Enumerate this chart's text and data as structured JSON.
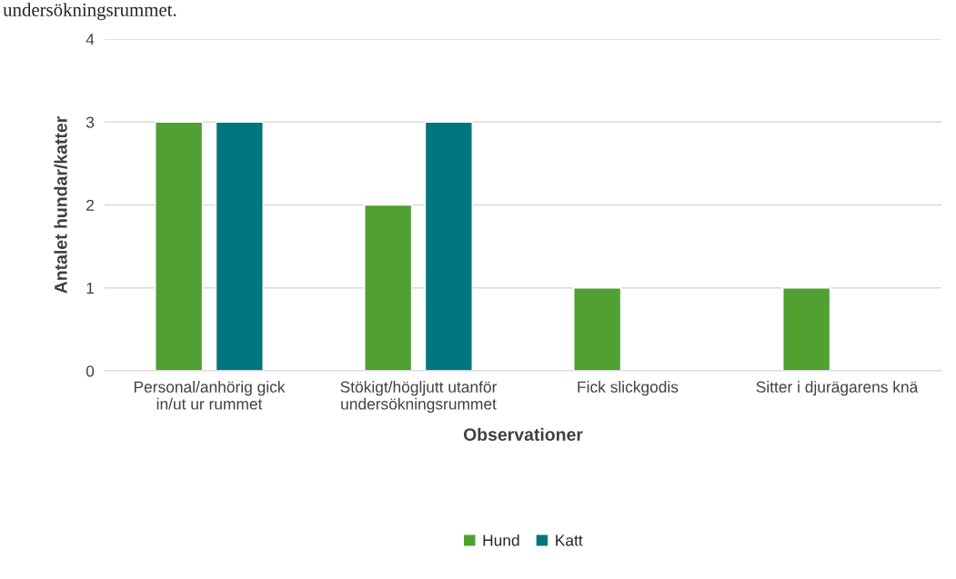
{
  "chart_data": {
    "type": "bar",
    "categories": [
      "Personal/anhörig gick in/ut ur rummet",
      "Stökigt/högljutt utanför undersökningsrummet",
      "Fick slickgodis",
      "Sitter i djurägarens knä"
    ],
    "series": [
      {
        "name": "Hund",
        "color": "#50a032",
        "values": [
          3,
          2,
          1,
          1
        ]
      },
      {
        "name": "Katt",
        "color": "#00767e",
        "values": [
          3,
          3,
          null,
          null
        ]
      }
    ],
    "xlabel": "Observationer",
    "ylabel": "Antalet hundar/katter",
    "ylim": [
      0,
      4
    ],
    "yticks": [
      0,
      1,
      2,
      3,
      4
    ],
    "grid": "y",
    "legend": "bottom",
    "annotations": [
      "undersökningsrummet."
    ]
  }
}
